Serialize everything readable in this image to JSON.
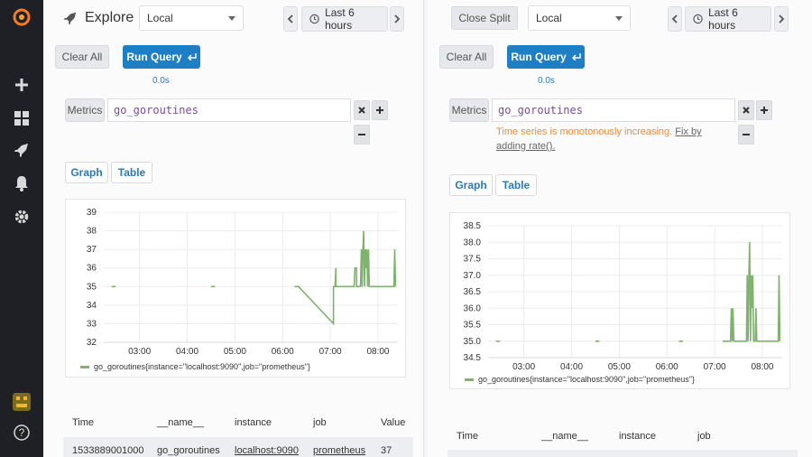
{
  "sidebar": {
    "icons": [
      "grafana-logo-icon",
      "plus-icon",
      "dashboards-icon",
      "explore-icon",
      "alerting-icon",
      "gear-icon",
      "avatar",
      "help-icon"
    ]
  },
  "left": {
    "title": "Explore",
    "datasource": "Local",
    "time_range": "Last 6 hours",
    "clear_label": "Clear All",
    "run_label": "Run Query",
    "elapsed": "0.0s",
    "metrics_label": "Metrics",
    "query": "go_goroutines",
    "tabs": [
      "Graph",
      "Table"
    ],
    "legend": "go_goroutines{instance=\"localhost:9090\",job=\"prometheus\"}",
    "table": {
      "headers": [
        "Time",
        "__name__",
        "instance",
        "job",
        "Value"
      ],
      "rows": [
        [
          "1533889001000",
          "go_goroutines",
          "localhost:9090",
          "prometheus",
          "37"
        ]
      ]
    }
  },
  "right": {
    "close_label": "Close Split",
    "datasource": "Local",
    "time_range": "Last 6 hours",
    "clear_label": "Clear All",
    "run_label": "Run Query",
    "elapsed": "0.0s",
    "metrics_label": "Metrics",
    "query": "go_goroutines",
    "hint_text": "Time series is monotonously increasing.",
    "hint_fix": "Fix by adding rate().",
    "tabs": [
      "Graph",
      "Table"
    ],
    "legend": "go_goroutines{instance=\"localhost:9090\",job=\"prometheus\"}",
    "table": {
      "headers": [
        "Time",
        "__name__",
        "instance",
        "job"
      ]
    }
  },
  "chart_data": [
    {
      "type": "line",
      "y_ticks": [
        "39",
        "38",
        "37",
        "36",
        "35",
        "34",
        "33",
        "32"
      ],
      "x_ticks": [
        "03:00",
        "04:00",
        "05:00",
        "06:00",
        "07:00",
        "08:00"
      ],
      "ylim": [
        32,
        39
      ],
      "xlim": [
        "02:15",
        "08:25"
      ],
      "series": [
        {
          "color": "#7eb26d",
          "points": [
            [
              "02:25",
              35
            ],
            [
              "02:30",
              35
            ],
            [
              "04:30",
              35
            ],
            [
              "04:35",
              35
            ],
            [
              "06:15",
              35
            ],
            [
              "06:20",
              35
            ],
            [
              "07:04",
              33
            ],
            [
              "07:04",
              35
            ],
            [
              "07:06",
              35
            ],
            [
              "07:07",
              36
            ],
            [
              "07:07",
              35
            ],
            [
              "07:30",
              35
            ],
            [
              "07:31",
              36
            ],
            [
              "07:33",
              36
            ],
            [
              "07:33",
              35
            ],
            [
              "07:38",
              35
            ],
            [
              "07:39",
              37
            ],
            [
              "07:40",
              35
            ],
            [
              "07:41",
              37
            ],
            [
              "07:42",
              38
            ],
            [
              "07:43",
              35
            ],
            [
              "07:44",
              37
            ],
            [
              "07:45",
              36
            ],
            [
              "07:46",
              37
            ],
            [
              "07:47",
              35
            ],
            [
              "07:48",
              37
            ],
            [
              "07:49",
              35
            ],
            [
              "08:20",
              35
            ],
            [
              "08:21",
              37
            ],
            [
              "08:22",
              35
            ]
          ]
        }
      ]
    },
    {
      "type": "line",
      "y_ticks": [
        "38.5",
        "38.0",
        "37.5",
        "37.0",
        "36.5",
        "36.0",
        "35.5",
        "35.0",
        "34.5"
      ],
      "x_ticks": [
        "03:00",
        "04:00",
        "05:00",
        "06:00",
        "07:00",
        "08:00"
      ],
      "ylim": [
        34.5,
        38.5
      ],
      "xlim": [
        "02:15",
        "08:25"
      ],
      "series": [
        {
          "color": "#7eb26d",
          "points": [
            [
              "02:25",
              35
            ],
            [
              "02:30",
              35
            ],
            [
              "04:30",
              35
            ],
            [
              "04:35",
              35
            ],
            [
              "06:15",
              35
            ],
            [
              "06:20",
              35
            ],
            [
              "07:10",
              35
            ],
            [
              "07:20",
              35
            ],
            [
              "07:21",
              36
            ],
            [
              "07:22",
              35
            ],
            [
              "07:23",
              36
            ],
            [
              "07:24",
              35
            ],
            [
              "07:40",
              35
            ],
            [
              "07:41",
              37
            ],
            [
              "07:42",
              35
            ],
            [
              "07:43",
              37
            ],
            [
              "07:44",
              38
            ],
            [
              "07:45",
              35
            ],
            [
              "07:46",
              37
            ],
            [
              "07:47",
              36
            ],
            [
              "07:48",
              37
            ],
            [
              "07:49",
              35
            ],
            [
              "07:51",
              35
            ],
            [
              "07:52",
              36
            ],
            [
              "07:53",
              35
            ],
            [
              "08:20",
              35
            ],
            [
              "08:21",
              37
            ],
            [
              "08:22",
              35
            ]
          ]
        }
      ]
    }
  ]
}
